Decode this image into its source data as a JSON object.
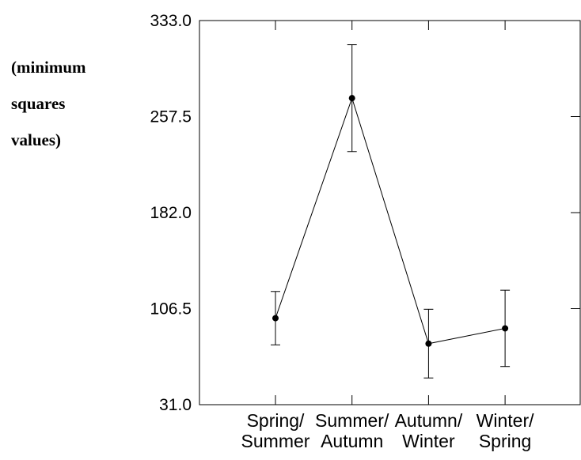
{
  "chart_data": {
    "type": "line",
    "y_label": "(minimum squares values)",
    "categories": [
      "Spring/ Summer",
      "Summer/ Autumn",
      "Autumn/ Winter",
      "Winter/ Spring"
    ],
    "series": [
      {
        "color": "#000000",
        "values": [
          99,
          272,
          79,
          91
        ],
        "errors": [
          21,
          42,
          27,
          30
        ]
      }
    ],
    "ylim": [
      31,
      333
    ],
    "yticks": [
      {
        "value": 31,
        "label": "31.0"
      },
      106.5,
      {
        "value": 182,
        "label": "182.0"
      },
      257.5,
      {
        "value": 333,
        "label": "333.0"
      }
    ]
  }
}
